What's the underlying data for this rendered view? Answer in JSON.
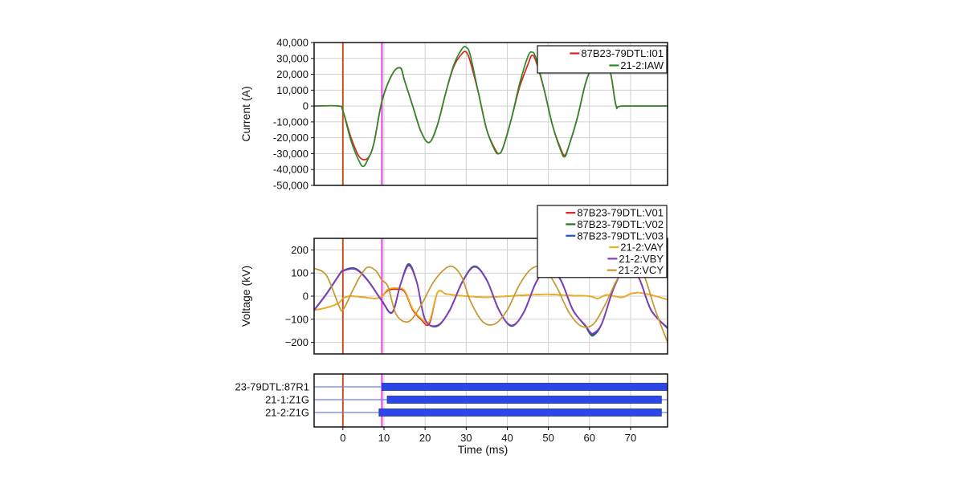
{
  "chart_data": [
    {
      "type": "line",
      "ylabel": "Current (A)",
      "xlim": [
        -7,
        79
      ],
      "ylim": [
        -50000,
        40000
      ],
      "yticks": [
        40000,
        30000,
        20000,
        10000,
        0,
        -10000,
        -20000,
        -30000,
        -40000,
        -50000
      ],
      "ytick_labels": [
        "40,000",
        "30,000",
        "20,000",
        "10,000",
        "0",
        "-10,000",
        "-20,000",
        "-30,000",
        "-40,000",
        "-50,000"
      ],
      "grid": true,
      "legend_position": "top-right",
      "markers": [
        {
          "x": 0,
          "color": "#c8501e"
        },
        {
          "x": 9.5,
          "color": "#e040e0"
        }
      ],
      "series": [
        {
          "name": "87B23-79DTL:I01",
          "color": "#e02020",
          "x": [
            -7,
            -1,
            0,
            2,
            4,
            6,
            7.5,
            9.5,
            12,
            14,
            15,
            17,
            19,
            21,
            23,
            25,
            27,
            29,
            30,
            31,
            33,
            35,
            37,
            38,
            39,
            41,
            43,
            45,
            46,
            47,
            49,
            51,
            53,
            54,
            55,
            57,
            59,
            61,
            62,
            63,
            65,
            66.5,
            68,
            79
          ],
          "y": [
            0,
            0,
            -3000,
            -20000,
            -32000,
            -33000,
            -24000,
            3000,
            20000,
            24000,
            16000,
            0,
            -16000,
            -23000,
            -12000,
            8000,
            25000,
            33000,
            34000,
            28000,
            8000,
            -15000,
            -27000,
            -30000,
            -26000,
            -8000,
            12000,
            26000,
            32000,
            28000,
            10000,
            -12000,
            -27000,
            -31000,
            -25000,
            -8000,
            14000,
            27000,
            28000,
            28000,
            22000,
            0,
            0,
            0
          ]
        },
        {
          "name": "21-2:IAW",
          "color": "#2a8a2a",
          "x": [
            -7,
            -1,
            0,
            2,
            4,
            5,
            6,
            7.5,
            9.5,
            12,
            14,
            15,
            17,
            19,
            21,
            23,
            25,
            27,
            29,
            30,
            31,
            33,
            35,
            37,
            38,
            39,
            41,
            43,
            45,
            46,
            47,
            49,
            51,
            53,
            54,
            55,
            57,
            59,
            61,
            62,
            63,
            65,
            66.5,
            68,
            79
          ],
          "y": [
            0,
            0,
            -3000,
            -22000,
            -35000,
            -38000,
            -34000,
            -24000,
            3000,
            20000,
            24000,
            16000,
            0,
            -16000,
            -23000,
            -12000,
            8000,
            26000,
            36000,
            37000,
            32000,
            8000,
            -15000,
            -28000,
            -30000,
            -26000,
            -8000,
            14000,
            31000,
            34000,
            30000,
            10000,
            -12000,
            -28000,
            -32000,
            -25000,
            -8000,
            14000,
            27000,
            28000,
            28000,
            22000,
            0,
            0,
            0
          ]
        }
      ]
    },
    {
      "type": "line",
      "ylabel": "Voltage (kV)",
      "xlim": [
        -7,
        79
      ],
      "ylim": [
        -250,
        250
      ],
      "yticks": [
        200,
        100,
        0,
        -100,
        -200
      ],
      "ytick_labels": [
        "200",
        "100",
        "0",
        "−100",
        "−200"
      ],
      "grid": true,
      "legend_position": "top-right",
      "markers": [
        {
          "x": 0,
          "color": "#c8501e"
        },
        {
          "x": 9.5,
          "color": "#e040e0"
        }
      ],
      "series": [
        {
          "name": "87B23-79DTL:V01",
          "color": "#e02020",
          "x": [
            -7,
            -4,
            -1,
            0,
            2,
            5,
            8,
            9.5,
            11,
            13,
            15,
            17,
            19,
            21,
            23,
            25,
            27,
            30,
            35,
            40,
            45,
            50,
            55,
            60,
            62,
            64,
            66,
            68,
            70,
            72,
            75,
            79
          ],
          "y": [
            -60,
            -50,
            -30,
            -10,
            0,
            -5,
            -10,
            0,
            25,
            30,
            20,
            -60,
            -100,
            -120,
            15,
            10,
            5,
            0,
            -5,
            0,
            5,
            8,
            3,
            0,
            -10,
            5,
            0,
            -5,
            10,
            15,
            5,
            -15
          ]
        },
        {
          "name": "87B23-79DTL:V02",
          "color": "#2a6e2a",
          "x": [
            -7,
            -4,
            -1,
            0,
            3,
            6,
            9.5,
            12,
            14,
            16,
            18,
            20,
            23,
            26,
            29,
            32,
            35,
            38,
            41,
            44,
            47,
            50,
            53,
            56,
            59,
            60,
            61,
            63,
            66,
            69,
            72,
            75,
            79
          ],
          "y": [
            -60,
            10,
            90,
            110,
            120,
            70,
            -20,
            -70,
            50,
            140,
            60,
            -100,
            -130,
            -60,
            60,
            130,
            70,
            -60,
            -130,
            -70,
            60,
            130,
            70,
            -60,
            -130,
            -160,
            -170,
            -120,
            40,
            130,
            80,
            -60,
            -140
          ]
        },
        {
          "name": "87B23-79DTL:V03",
          "color": "#2050c8",
          "x": [
            -7,
            -4,
            -1,
            0,
            3,
            6,
            9.5,
            12,
            14,
            16,
            18,
            20,
            23,
            26,
            29,
            32,
            35,
            38,
            41,
            44,
            47,
            50,
            53,
            56,
            59,
            60,
            61,
            63,
            66,
            69,
            72,
            75,
            79
          ],
          "y": [
            -60,
            10,
            90,
            110,
            118,
            70,
            -20,
            -70,
            50,
            135,
            60,
            -100,
            -128,
            -60,
            60,
            128,
            70,
            -60,
            -128,
            -70,
            60,
            128,
            70,
            -60,
            -128,
            -155,
            -165,
            -120,
            40,
            128,
            80,
            -60,
            -138
          ]
        },
        {
          "name": "21-2:VAY",
          "color": "#e8b418",
          "x": [
            -7,
            -4,
            -1,
            0,
            2,
            5,
            8,
            9.5,
            11,
            13,
            15,
            17,
            19,
            21,
            23,
            25,
            27,
            30,
            35,
            40,
            45,
            50,
            55,
            60,
            62,
            64,
            66,
            68,
            70,
            72,
            75,
            79
          ],
          "y": [
            -60,
            -50,
            -30,
            -10,
            0,
            -5,
            -10,
            0,
            30,
            35,
            25,
            -55,
            -95,
            -110,
            15,
            10,
            5,
            0,
            -5,
            0,
            5,
            8,
            3,
            0,
            -10,
            5,
            0,
            -5,
            10,
            15,
            5,
            -15
          ]
        },
        {
          "name": "21-2:VBY",
          "color": "#8a3ab8",
          "x": [
            -7,
            -4,
            -1,
            0,
            3,
            6,
            9.5,
            12,
            14,
            16,
            18,
            20,
            23,
            26,
            29,
            32,
            35,
            38,
            41,
            44,
            47,
            50,
            53,
            56,
            59,
            60,
            61,
            63,
            66,
            69,
            72,
            75,
            79
          ],
          "y": [
            -62,
            8,
            88,
            108,
            116,
            68,
            -22,
            -72,
            48,
            132,
            58,
            -102,
            -126,
            -62,
            58,
            126,
            68,
            -62,
            -126,
            -72,
            58,
            126,
            68,
            -62,
            -126,
            -152,
            -160,
            -118,
            38,
            126,
            78,
            -62,
            -136
          ]
        },
        {
          "name": "21-2:VCY",
          "color": "#c8962a",
          "x": [
            -7,
            -4,
            -1,
            0,
            2,
            4,
            6,
            8,
            9.5,
            11,
            13,
            16,
            19,
            22,
            25,
            27,
            29,
            31,
            34,
            37,
            40,
            43,
            46,
            49,
            52,
            55,
            58,
            61,
            64,
            67,
            70,
            73,
            76,
            79
          ],
          "y": [
            120,
            90,
            -40,
            -60,
            10,
            80,
            125,
            110,
            70,
            40,
            -80,
            -110,
            -40,
            60,
            120,
            125,
            80,
            -20,
            -110,
            -120,
            -60,
            50,
            120,
            120,
            40,
            -70,
            -130,
            -120,
            -30,
            80,
            130,
            100,
            -60,
            -200
          ]
        }
      ]
    },
    {
      "type": "bar",
      "xlabel": "Time (ms)",
      "xlim": [
        -7,
        79
      ],
      "xticks": [
        0,
        10,
        20,
        30,
        40,
        50,
        60,
        70
      ],
      "xtick_labels": [
        "0",
        "10",
        "20",
        "30",
        "40",
        "50",
        "60",
        "70"
      ],
      "markers": [
        {
          "x": 0,
          "color": "#c8501e"
        },
        {
          "x": 9.5,
          "color": "#e040e0"
        }
      ],
      "channels": [
        {
          "name": "23-79DTL:87R1",
          "on_start": 9.5,
          "on_end": 79
        },
        {
          "name": "21-1:Z1G",
          "on_start": 10.8,
          "on_end": 77.5
        },
        {
          "name": "21-2:Z1G",
          "on_start": 8.8,
          "on_end": 77.5
        }
      ]
    }
  ]
}
